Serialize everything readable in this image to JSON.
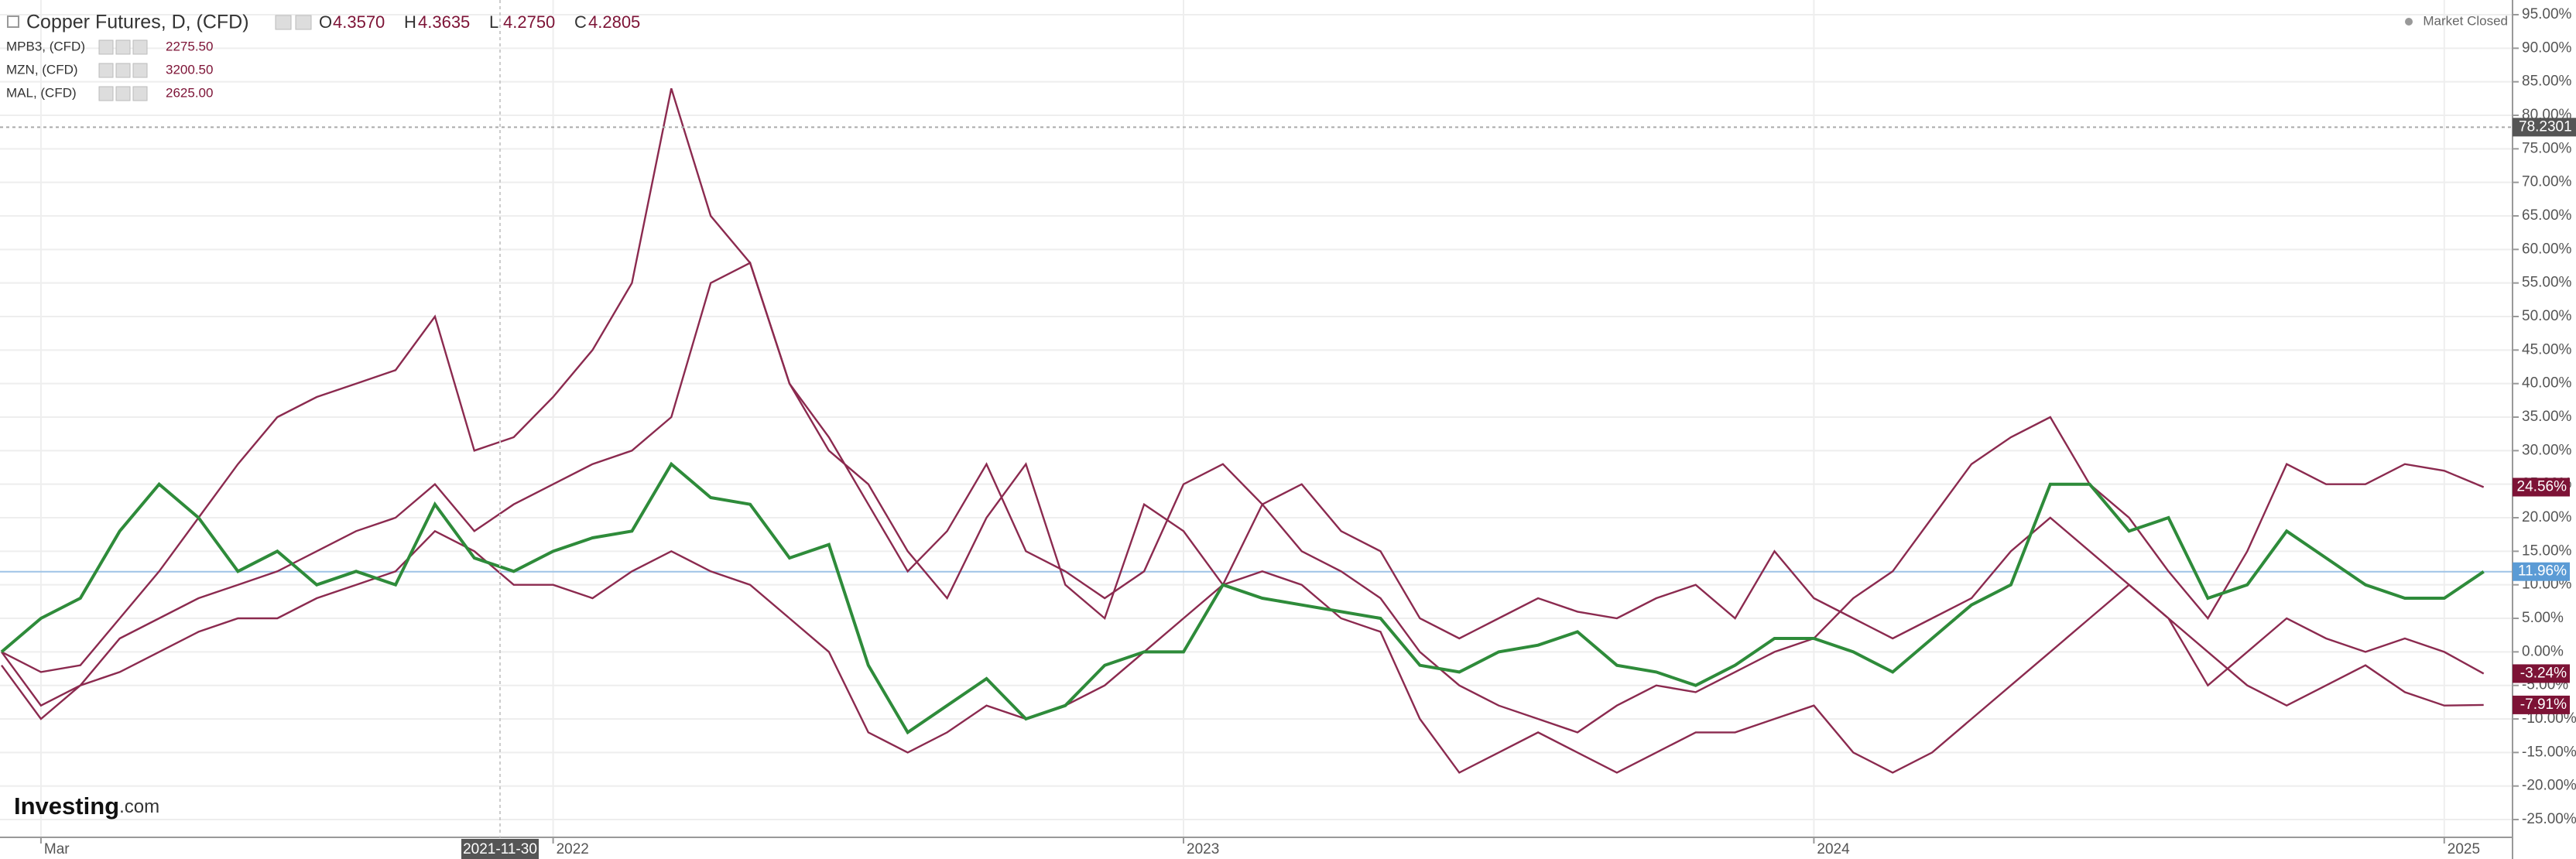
{
  "chart_data": {
    "type": "line",
    "title": "Copper Futures, D, (CFD)",
    "ohlc": [
      {
        "key": "O",
        "value": "4.3570"
      },
      {
        "key": "H",
        "value": "4.3635"
      },
      {
        "key": "L",
        "value": "4.2750"
      },
      {
        "key": "C",
        "value": "4.2805"
      }
    ],
    "status": "Market Closed",
    "brand": {
      "name": "Investing",
      "suffix": ".com"
    },
    "crosshair": {
      "x_label": "2021-11-30",
      "y_value": 78.2301
    },
    "categories": [
      null,
      "Mar",
      null,
      null,
      null,
      null,
      null,
      null,
      null,
      null,
      null,
      null,
      null,
      null,
      "2022",
      null,
      null,
      null,
      null,
      null,
      null,
      null,
      null,
      null,
      null,
      null,
      null,
      null,
      null,
      null,
      "2023",
      null,
      null,
      null,
      null,
      null,
      null,
      null,
      null,
      null,
      null,
      null,
      null,
      null,
      null,
      null,
      "2024",
      null,
      null,
      null,
      null,
      null,
      null,
      null,
      null,
      null,
      null,
      null,
      null,
      null,
      null,
      null,
      "2025",
      null
    ],
    "series": [
      {
        "name": "Copper Futures",
        "color": "#2e8b3a",
        "label_color": "#5b9bd5",
        "last_label": "11.96%",
        "values": [
          0,
          5,
          8,
          18,
          25,
          20,
          12,
          15,
          10,
          12,
          10,
          22,
          14,
          12,
          15,
          17,
          18,
          28,
          23,
          22,
          14,
          16,
          -2,
          -12,
          -8,
          -4,
          -10,
          -8,
          -2,
          0,
          0,
          10,
          8,
          7,
          6,
          5,
          -2,
          -3,
          0,
          1,
          3,
          -2,
          -3,
          -5,
          -2,
          2,
          2,
          0,
          -3,
          2,
          7,
          10,
          25,
          25,
          18,
          20,
          8,
          10,
          18,
          14,
          10,
          8,
          8,
          11.96
        ]
      },
      {
        "name": "MPB3, (CFD)",
        "price": "2275.50",
        "color": "#8b2a4f",
        "label_color": "#7d1336",
        "last_label": "24.56%",
        "values": [
          0,
          -3,
          -2,
          5,
          12,
          20,
          28,
          35,
          38,
          40,
          42,
          50,
          30,
          32,
          38,
          45,
          55,
          84,
          65,
          58,
          40,
          32,
          22,
          12,
          18,
          28,
          15,
          12,
          8,
          12,
          25,
          28,
          22,
          15,
          12,
          8,
          0,
          -5,
          -8,
          -10,
          -12,
          -8,
          -5,
          -6,
          -3,
          0,
          2,
          8,
          12,
          20,
          28,
          32,
          35,
          25,
          20,
          12,
          5,
          15,
          28,
          25,
          25,
          28,
          27,
          24.56
        ]
      },
      {
        "name": "MZN, (CFD)",
        "price": "3200.50",
        "color": "#8b2a4f",
        "label_color": "#7d1336",
        "last_label": "-3.24%",
        "values": [
          0,
          -8,
          -5,
          2,
          5,
          8,
          10,
          12,
          15,
          18,
          20,
          25,
          18,
          22,
          25,
          28,
          30,
          35,
          55,
          58,
          40,
          30,
          25,
          15,
          8,
          20,
          28,
          10,
          5,
          22,
          18,
          10,
          22,
          25,
          18,
          15,
          5,
          2,
          5,
          8,
          6,
          5,
          8,
          10,
          5,
          15,
          8,
          5,
          2,
          5,
          8,
          15,
          20,
          15,
          10,
          5,
          -5,
          0,
          5,
          2,
          0,
          2,
          0,
          -3.24
        ]
      },
      {
        "name": "MAL, (CFD)",
        "price": "2625.00",
        "color": "#8b2a4f",
        "label_color": "#7d1336",
        "last_label": "-7.91%",
        "values": [
          -2,
          -10,
          -5,
          -3,
          0,
          3,
          5,
          5,
          8,
          10,
          12,
          18,
          15,
          10,
          10,
          8,
          12,
          15,
          12,
          10,
          5,
          0,
          -12,
          -15,
          -12,
          -8,
          -10,
          -8,
          -5,
          0,
          5,
          10,
          12,
          10,
          5,
          3,
          -10,
          -18,
          -15,
          -12,
          -15,
          -18,
          -15,
          -12,
          -12,
          -10,
          -8,
          -15,
          -18,
          -15,
          -10,
          -5,
          0,
          5,
          10,
          5,
          0,
          -5,
          -8,
          -5,
          -2,
          -6,
          -8,
          -7.91
        ]
      }
    ],
    "ylim": [
      -27.65,
      97.19
    ],
    "yticks": [
      {
        "value": 95,
        "label": "95.00%"
      },
      {
        "value": 90,
        "label": "90.00%"
      },
      {
        "value": 85,
        "label": "85.00%"
      },
      {
        "value": 80,
        "label": "80.00%"
      },
      {
        "value": 75,
        "label": "75.00%"
      },
      {
        "value": 70,
        "label": "70.00%"
      },
      {
        "value": 65,
        "label": "65.00%"
      },
      {
        "value": 60,
        "label": "60.00%"
      },
      {
        "value": 55,
        "label": "55.00%"
      },
      {
        "value": 50,
        "label": "50.00%"
      },
      {
        "value": 45,
        "label": "45.00%"
      },
      {
        "value": 40,
        "label": "40.00%"
      },
      {
        "value": 35,
        "label": "35.00%"
      },
      {
        "value": 30,
        "label": "30.00%"
      },
      {
        "value": 25,
        "label": "25.00%"
      },
      {
        "value": 20,
        "label": "20.00%"
      },
      {
        "value": 15,
        "label": "15.00%"
      },
      {
        "value": 10,
        "label": "10.00%"
      },
      {
        "value": 5,
        "label": "5.00%"
      },
      {
        "value": 0,
        "label": "0.00%"
      },
      {
        "value": -5,
        "label": "-5.00%"
      },
      {
        "value": -10,
        "label": "-10.00%"
      },
      {
        "value": -15,
        "label": "-15.00%"
      },
      {
        "value": -20,
        "label": "-20.00%"
      },
      {
        "value": -25,
        "label": "-25.00%"
      }
    ],
    "grid": true
  }
}
